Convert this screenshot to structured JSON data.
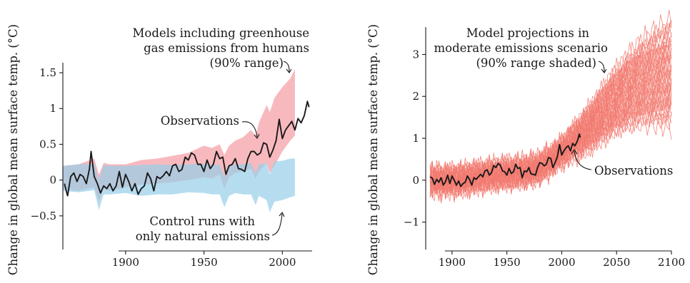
{
  "chart_data": [
    {
      "type": "area",
      "ylabel": "Change in global mean surface temp. (°C)",
      "xlim": [
        1860,
        2019
      ],
      "ylim": [
        -0.95,
        1.62
      ],
      "xticks": [
        1900,
        1950,
        2000
      ],
      "yticks": [
        1.5,
        1,
        0.5,
        0,
        -0.5
      ],
      "ytick_labels": [
        "1.5",
        "1",
        "0.5",
        "0",
        "−0.5"
      ],
      "annotations": {
        "models": [
          "Models including greenhouse",
          "gas emissions from humans",
          "(90% range)"
        ],
        "observations": "Observations",
        "control": [
          "Control runs with",
          "only natural emissions"
        ]
      },
      "colors": {
        "models": "#f7aab0",
        "control": "#97cfe8",
        "observations": "#1a1a1a"
      },
      "series": [
        {
          "kind": "band",
          "x": [
            1860,
            1870,
            1880,
            1883,
            1886,
            1890,
            1900,
            1910,
            1920,
            1930,
            1940,
            1950,
            1955,
            1960,
            1963,
            1966,
            1970,
            1975,
            1980,
            1983,
            1985,
            1990,
            1992,
            1995,
            2000,
            2005,
            2008
          ],
          "low": [
            -0.12,
            -0.15,
            -0.1,
            -0.3,
            -0.12,
            -0.15,
            -0.1,
            -0.06,
            -0.05,
            -0.03,
            0.0,
            0.04,
            0.02,
            0.08,
            -0.12,
            0.04,
            0.1,
            0.12,
            0.16,
            0.02,
            0.12,
            0.24,
            0.1,
            0.2,
            0.4,
            0.55,
            0.62
          ],
          "high": [
            0.2,
            0.22,
            0.3,
            0.08,
            0.24,
            0.22,
            0.22,
            0.28,
            0.3,
            0.34,
            0.38,
            0.48,
            0.45,
            0.5,
            0.35,
            0.48,
            0.55,
            0.6,
            0.7,
            0.62,
            0.8,
            1.05,
            0.95,
            1.15,
            1.3,
            1.42,
            1.55
          ]
        },
        {
          "kind": "band",
          "x": [
            1860,
            1870,
            1880,
            1883,
            1886,
            1890,
            1900,
            1910,
            1920,
            1930,
            1940,
            1950,
            1955,
            1960,
            1963,
            1966,
            1970,
            1975,
            1980,
            1983,
            1985,
            1990,
            1992,
            1995,
            2000,
            2005,
            2008
          ],
          "low": [
            -0.15,
            -0.17,
            -0.14,
            -0.42,
            -0.2,
            -0.2,
            -0.18,
            -0.22,
            -0.2,
            -0.2,
            -0.17,
            -0.18,
            -0.2,
            -0.2,
            -0.38,
            -0.22,
            -0.18,
            -0.2,
            -0.2,
            -0.35,
            -0.22,
            -0.28,
            -0.45,
            -0.3,
            -0.28,
            -0.24,
            -0.22
          ],
          "high": [
            0.2,
            0.22,
            0.23,
            0.0,
            0.21,
            0.2,
            0.2,
            0.21,
            0.22,
            0.21,
            0.22,
            0.23,
            0.21,
            0.22,
            0.05,
            0.2,
            0.22,
            0.22,
            0.24,
            0.1,
            0.22,
            0.24,
            0.08,
            0.26,
            0.27,
            0.3,
            0.3
          ]
        },
        {
          "kind": "line",
          "name": "Observations",
          "x": [
            1861,
            1863,
            1865,
            1867,
            1869,
            1871,
            1873,
            1875,
            1877,
            1878,
            1880,
            1882,
            1884,
            1886,
            1888,
            1890,
            1892,
            1894,
            1896,
            1898,
            1900,
            1902,
            1904,
            1906,
            1908,
            1910,
            1912,
            1914,
            1916,
            1918,
            1920,
            1922,
            1924,
            1926,
            1928,
            1930,
            1932,
            1934,
            1936,
            1938,
            1940,
            1942,
            1944,
            1946,
            1948,
            1950,
            1952,
            1954,
            1956,
            1958,
            1960,
            1962,
            1964,
            1966,
            1968,
            1970,
            1972,
            1974,
            1976,
            1978,
            1980,
            1982,
            1984,
            1986,
            1988,
            1990,
            1992,
            1994,
            1996,
            1998,
            2000,
            2002,
            2004,
            2006,
            2008,
            2010,
            2012,
            2014,
            2015,
            2016,
            2017
          ],
          "y": [
            -0.05,
            -0.22,
            0.05,
            0.1,
            -0.02,
            0.08,
            0.05,
            -0.05,
            0.16,
            0.4,
            0.05,
            -0.05,
            -0.18,
            -0.08,
            -0.12,
            -0.05,
            -0.15,
            -0.08,
            0.12,
            -0.1,
            0.08,
            -0.02,
            -0.15,
            -0.05,
            -0.2,
            -0.12,
            -0.08,
            0.1,
            0.02,
            -0.15,
            0.05,
            0.02,
            0.06,
            0.12,
            0.06,
            0.2,
            0.22,
            0.12,
            0.15,
            0.32,
            0.28,
            0.38,
            0.35,
            0.22,
            0.22,
            0.12,
            0.28,
            0.16,
            0.22,
            0.4,
            0.3,
            0.32,
            0.08,
            0.2,
            0.22,
            0.3,
            0.16,
            0.15,
            0.12,
            0.3,
            0.4,
            0.4,
            0.35,
            0.38,
            0.52,
            0.5,
            0.32,
            0.42,
            0.55,
            0.85,
            0.58,
            0.7,
            0.76,
            0.82,
            0.7,
            0.86,
            0.8,
            0.9,
            1.0,
            1.1,
            1.02
          ]
        }
      ]
    },
    {
      "type": "line",
      "ylabel": "Change in global mean surface temp. (°C)",
      "xlim": [
        1876,
        2100
      ],
      "ylim": [
        -1.62,
        3.62
      ],
      "xticks": [
        1900,
        1950,
        2000,
        2050,
        2100
      ],
      "yticks": [
        3,
        2,
        1,
        0,
        -1
      ],
      "ytick_labels": [
        "3",
        "2",
        "1",
        "0",
        "−1"
      ],
      "annotations": {
        "projections": [
          "Model projections in",
          "moderate emissions scenario",
          "(90% range shaded)"
        ],
        "observations": "Observations"
      },
      "colors": {
        "ensemble": "#f27a70",
        "band": "#f8c7c0",
        "observations": "#1a1a1a"
      },
      "ensemble_member_count": 30,
      "series": [
        {
          "kind": "band",
          "x": [
            1880,
            1900,
            1920,
            1950,
            1980,
            2000,
            2020,
            2040,
            2060,
            2080,
            2100
          ],
          "low": [
            -0.3,
            -0.3,
            -0.25,
            -0.2,
            -0.05,
            0.35,
            0.7,
            1.1,
            1.45,
            1.6,
            1.7
          ],
          "high": [
            0.3,
            0.3,
            0.4,
            0.45,
            0.6,
            1.05,
            1.6,
            2.3,
            2.85,
            3.1,
            3.25
          ]
        },
        {
          "kind": "ensemble_mean",
          "x": [
            1880,
            1890,
            1900,
            1910,
            1920,
            1930,
            1940,
            1950,
            1960,
            1970,
            1980,
            1990,
            2000,
            2010,
            2020,
            2030,
            2040,
            2050,
            2060,
            2070,
            2080,
            2090,
            2100
          ],
          "y": [
            0.0,
            -0.02,
            0.0,
            0.02,
            0.06,
            0.1,
            0.14,
            0.16,
            0.18,
            0.22,
            0.3,
            0.48,
            0.68,
            0.9,
            1.12,
            1.38,
            1.65,
            1.9,
            2.1,
            2.28,
            2.4,
            2.5,
            2.55
          ]
        },
        {
          "kind": "line",
          "name": "Observations",
          "x": [
            1880,
            1882,
            1884,
            1886,
            1888,
            1890,
            1892,
            1894,
            1896,
            1898,
            1900,
            1902,
            1904,
            1906,
            1908,
            1910,
            1912,
            1914,
            1916,
            1918,
            1920,
            1922,
            1924,
            1926,
            1928,
            1930,
            1932,
            1934,
            1936,
            1938,
            1940,
            1942,
            1944,
            1946,
            1948,
            1950,
            1952,
            1954,
            1956,
            1958,
            1960,
            1962,
            1964,
            1966,
            1968,
            1970,
            1972,
            1974,
            1976,
            1978,
            1980,
            1982,
            1984,
            1986,
            1988,
            1990,
            1992,
            1994,
            1996,
            1998,
            2000,
            2002,
            2004,
            2006,
            2008,
            2010,
            2012,
            2014,
            2015,
            2016,
            2017
          ],
          "y": [
            0.08,
            0.05,
            -0.1,
            0.02,
            -0.05,
            0.06,
            -0.12,
            -0.04,
            0.12,
            -0.08,
            0.1,
            0.0,
            -0.12,
            -0.02,
            -0.15,
            -0.08,
            -0.05,
            0.1,
            0.02,
            -0.12,
            0.06,
            0.02,
            0.08,
            0.14,
            0.08,
            0.22,
            0.25,
            0.12,
            0.18,
            0.35,
            0.3,
            0.4,
            0.36,
            0.22,
            0.2,
            0.12,
            0.28,
            0.16,
            0.2,
            0.38,
            0.28,
            0.3,
            0.06,
            0.22,
            0.2,
            0.3,
            0.15,
            0.14,
            0.12,
            0.3,
            0.42,
            0.4,
            0.34,
            0.38,
            0.54,
            0.52,
            0.3,
            0.42,
            0.56,
            0.85,
            0.6,
            0.7,
            0.78,
            0.82,
            0.7,
            0.88,
            0.82,
            0.92,
            1.0,
            1.1,
            1.02
          ]
        }
      ]
    }
  ]
}
